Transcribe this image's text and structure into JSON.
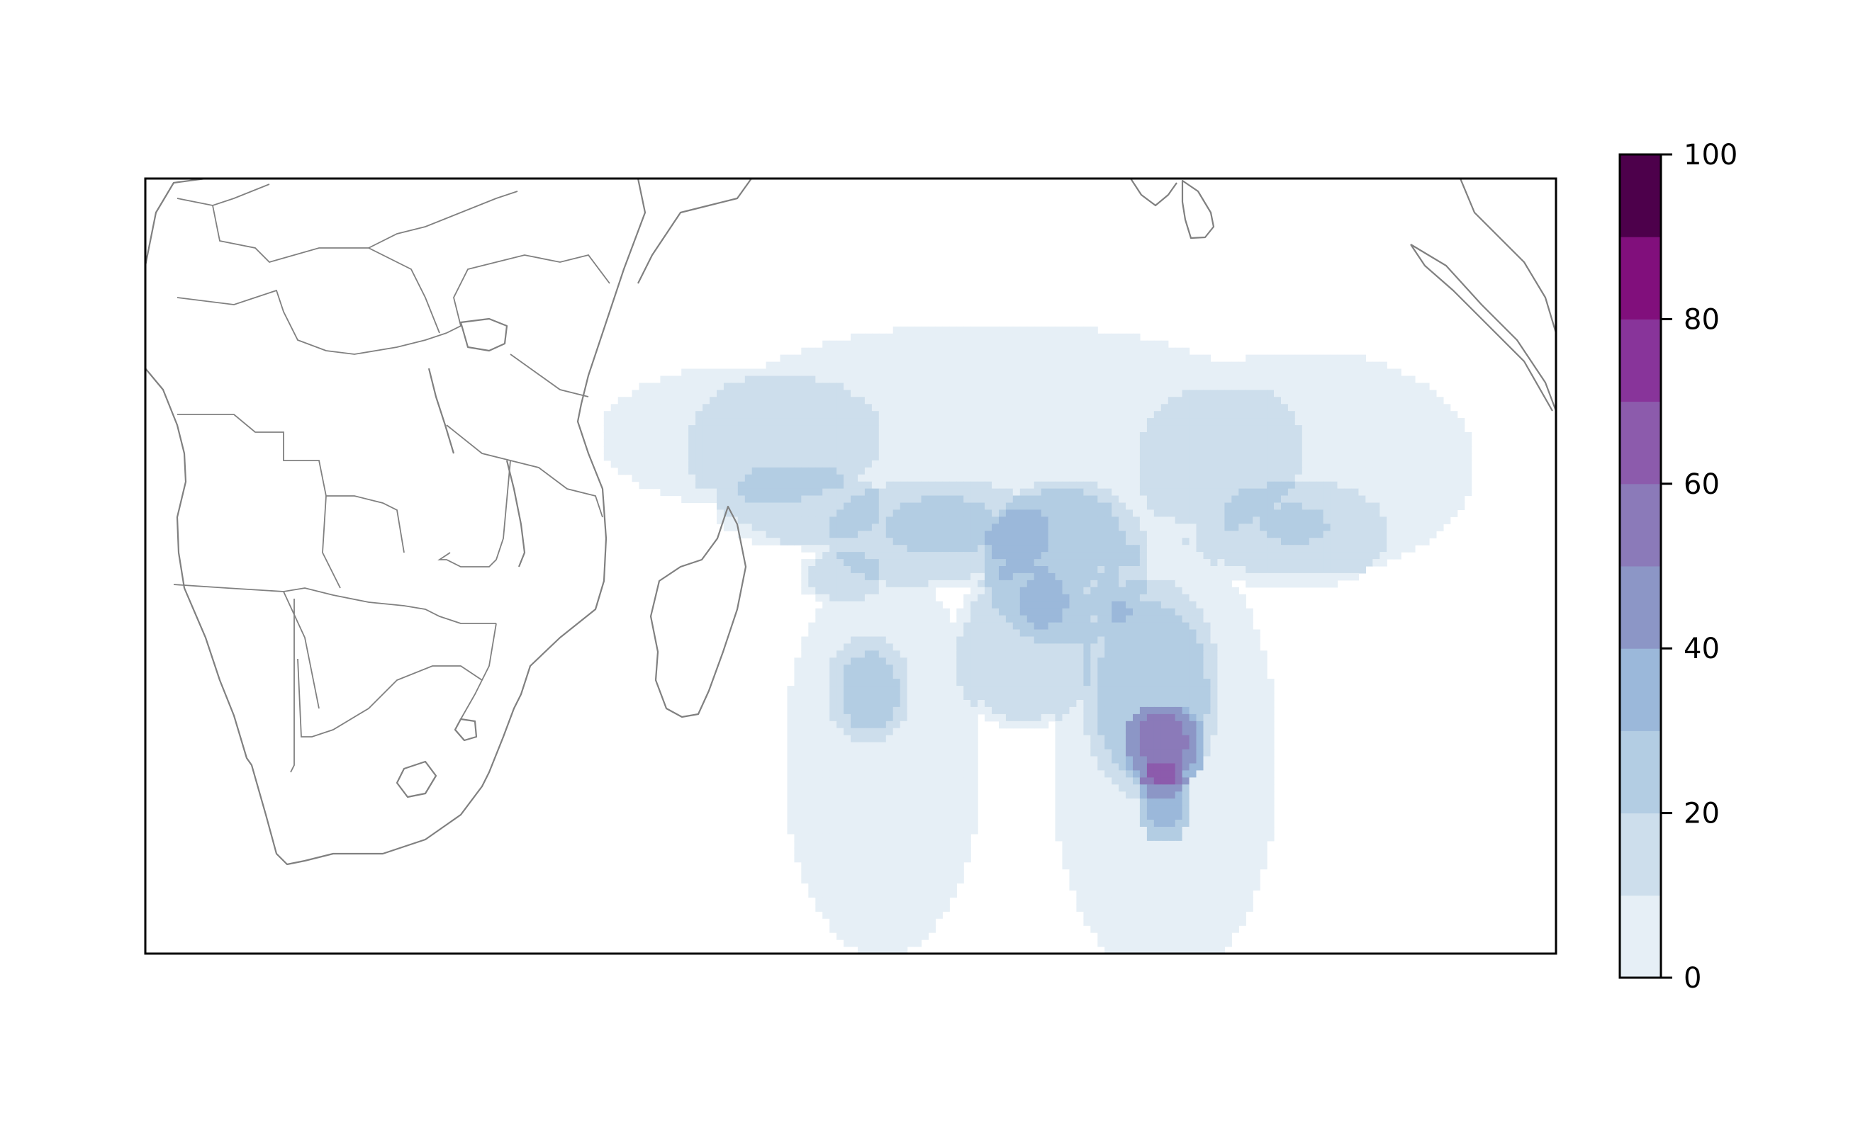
{
  "figure": {
    "map_extent": {
      "lon": [
        10,
        110
      ],
      "lat": [
        -50,
        5
      ]
    },
    "coastline_color": "#808080",
    "frame_color": "#000000",
    "background": "#ffffff"
  },
  "colorbar": {
    "ticks": [
      "0",
      "20",
      "40",
      "60",
      "80",
      "100"
    ],
    "levels": [
      0,
      10,
      20,
      30,
      40,
      50,
      60,
      70,
      80,
      90,
      100
    ],
    "colors": [
      "#e6eff6",
      "#cddeec",
      "#b3cde3",
      "#9bb8da",
      "#8c96c6",
      "#8b7ab9",
      "#8c5bac",
      "#88349a",
      "#810f7c",
      "#4d004b"
    ]
  },
  "field": {
    "variable_range": [
      0,
      100
    ],
    "blobs": [
      {
        "lon": 70,
        "lat": -14,
        "rx": 22,
        "ry": 9,
        "v": 9
      },
      {
        "lon": 92,
        "lat": -15,
        "rx": 12,
        "ry": 8,
        "v": 9
      },
      {
        "lon": 62,
        "lat": -36,
        "rx": 7,
        "ry": 14,
        "v": 8
      },
      {
        "lon": 82,
        "lat": -36,
        "rx": 8,
        "ry": 16,
        "v": 8
      },
      {
        "lon": 52,
        "lat": -13,
        "rx": 10,
        "ry": 5,
        "v": 10
      },
      {
        "lon": 56,
        "lat": -18,
        "rx": 6,
        "ry": 3,
        "v": 14
      },
      {
        "lon": 66,
        "lat": -20,
        "rx": 8,
        "ry": 4,
        "v": 16
      },
      {
        "lon": 75,
        "lat": -22,
        "rx": 6,
        "ry": 6,
        "v": 22
      },
      {
        "lon": 72,
        "lat": -28,
        "rx": 5,
        "ry": 6,
        "v": 18
      },
      {
        "lon": 91,
        "lat": -20,
        "rx": 7,
        "ry": 4,
        "v": 14
      },
      {
        "lon": 81,
        "lat": -31,
        "rx": 5,
        "ry": 8,
        "v": 22
      },
      {
        "lon": 82,
        "lat": -35,
        "rx": 3,
        "ry": 3,
        "v": 32
      },
      {
        "lon": 82,
        "lat": -39,
        "rx": 2,
        "ry": 3,
        "v": 30
      },
      {
        "lon": 61,
        "lat": -31,
        "rx": 3,
        "ry": 4,
        "v": 18
      },
      {
        "lon": 59,
        "lat": -23,
        "rx": 3,
        "ry": 2,
        "v": 16
      }
    ]
  }
}
